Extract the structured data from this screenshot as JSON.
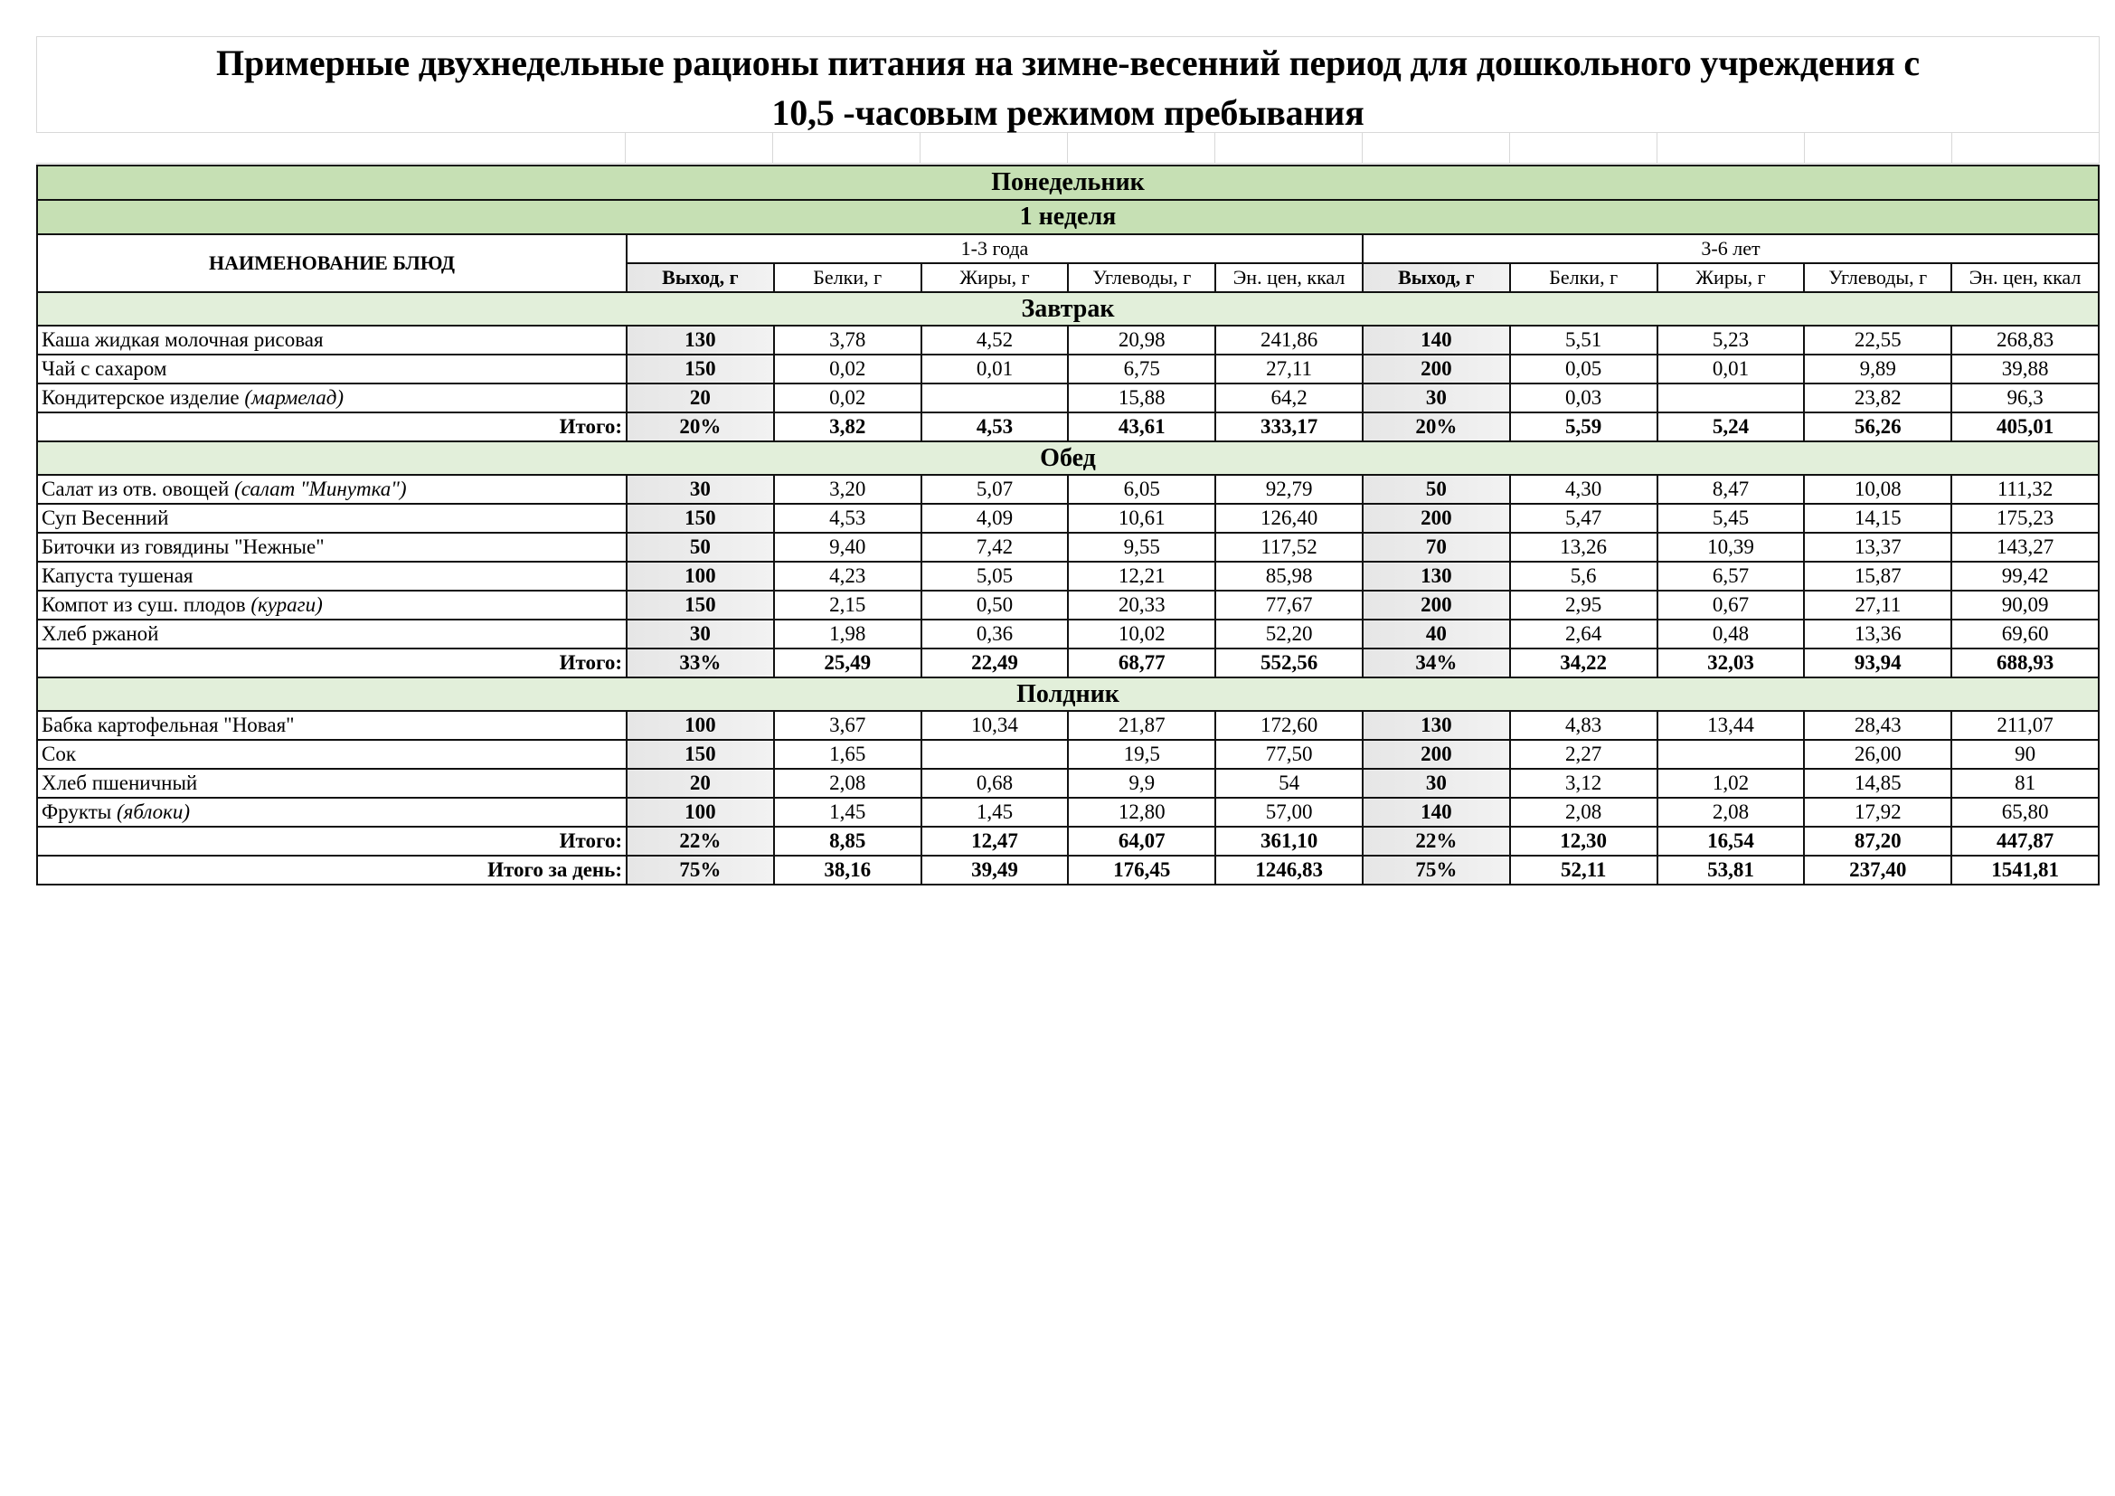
{
  "title": {
    "line1": "Примерные двухнедельные рационы питания на зимне-весенний период для дошкольного учреждения с",
    "line2": "10,5 -часовым режимом пребывания"
  },
  "day": "Понедельник",
  "week": "1 неделя",
  "header": {
    "name": "НАИМЕНОВАНИЕ БЛЮД",
    "groups": [
      "1-3 года",
      "3-6 лет"
    ],
    "columns": [
      "Выход, г",
      "Белки, г",
      "Жиры, г",
      "Углеводы, г",
      "Эн. цен, ккал"
    ]
  },
  "colors": {
    "band": "#c6e0b4",
    "section": "#e2efda",
    "output_col": "#ebebeb"
  },
  "sections": [
    {
      "title": "Завтрак",
      "rows": [
        {
          "name": "Каша жидкая молочная рисовая",
          "note": "",
          "v": [
            "130",
            "3,78",
            "4,52",
            "20,98",
            "241,86",
            "140",
            "5,51",
            "5,23",
            "22,55",
            "268,83"
          ]
        },
        {
          "name": "Чай с сахаром",
          "note": "",
          "v": [
            "150",
            "0,02",
            "0,01",
            "6,75",
            "27,11",
            "200",
            "0,05",
            "0,01",
            "9,89",
            "39,88"
          ]
        },
        {
          "name": "Кондитерское изделие ",
          "note": "(мармелад)",
          "v": [
            "20",
            "0,02",
            "",
            "15,88",
            "64,2",
            "30",
            "0,03",
            "",
            "23,82",
            "96,3"
          ]
        }
      ],
      "total": {
        "label": "Итого:",
        "v": [
          "20%",
          "3,82",
          "4,53",
          "43,61",
          "333,17",
          "20%",
          "5,59",
          "5,24",
          "56,26",
          "405,01"
        ]
      }
    },
    {
      "title": "Обед",
      "rows": [
        {
          "name": "Салат из отв. овощей ",
          "note": "(салат \"Минутка\")",
          "v": [
            "30",
            "3,20",
            "5,07",
            "6,05",
            "92,79",
            "50",
            "4,30",
            "8,47",
            "10,08",
            "111,32"
          ]
        },
        {
          "name": "Суп Весенний",
          "note": "",
          "v": [
            "150",
            "4,53",
            "4,09",
            "10,61",
            "126,40",
            "200",
            "5,47",
            "5,45",
            "14,15",
            "175,23"
          ]
        },
        {
          "name": "Биточки из говядины \"Нежные\"",
          "note": "",
          "v": [
            "50",
            "9,40",
            "7,42",
            "9,55",
            "117,52",
            "70",
            "13,26",
            "10,39",
            "13,37",
            "143,27"
          ]
        },
        {
          "name": "Капуста тушеная",
          "note": "",
          "v": [
            "100",
            "4,23",
            "5,05",
            "12,21",
            "85,98",
            "130",
            "5,6",
            "6,57",
            "15,87",
            "99,42"
          ]
        },
        {
          "name": "Компот из суш. плодов ",
          "note": "(кураги)",
          "v": [
            "150",
            "2,15",
            "0,50",
            "20,33",
            "77,67",
            "200",
            "2,95",
            "0,67",
            "27,11",
            "90,09"
          ]
        },
        {
          "name": "Хлеб ржаной",
          "note": "",
          "v": [
            "30",
            "1,98",
            "0,36",
            "10,02",
            "52,20",
            "40",
            "2,64",
            "0,48",
            "13,36",
            "69,60"
          ]
        }
      ],
      "total": {
        "label": "Итого:",
        "v": [
          "33%",
          "25,49",
          "22,49",
          "68,77",
          "552,56",
          "34%",
          "34,22",
          "32,03",
          "93,94",
          "688,93"
        ]
      }
    },
    {
      "title": "Полдник",
      "rows": [
        {
          "name": "Бабка картофельная \"Новая\"",
          "note": "",
          "v": [
            "100",
            "3,67",
            "10,34",
            "21,87",
            "172,60",
            "130",
            "4,83",
            "13,44",
            "28,43",
            "211,07"
          ]
        },
        {
          "name": "Сок",
          "note": "",
          "v": [
            "150",
            "1,65",
            "",
            "19,5",
            "77,50",
            "200",
            "2,27",
            "",
            "26,00",
            "90"
          ]
        },
        {
          "name": "Хлеб пшеничный",
          "note": "",
          "v": [
            "20",
            "2,08",
            "0,68",
            "9,9",
            "54",
            "30",
            "3,12",
            "1,02",
            "14,85",
            "81"
          ]
        },
        {
          "name": "Фрукты ",
          "note": "(яблоки)",
          "v": [
            "100",
            "1,45",
            "1,45",
            "12,80",
            "57,00",
            "140",
            "2,08",
            "2,08",
            "17,92",
            "65,80"
          ]
        }
      ],
      "total": {
        "label": "Итого:",
        "v": [
          "22%",
          "8,85",
          "12,47",
          "64,07",
          "361,10",
          "22%",
          "12,30",
          "16,54",
          "87,20",
          "447,87"
        ]
      }
    }
  ],
  "day_total": {
    "label": "Итого за день:",
    "v": [
      "75%",
      "38,16",
      "39,49",
      "176,45",
      "1246,83",
      "75%",
      "52,11",
      "53,81",
      "237,40",
      "1541,81"
    ]
  }
}
